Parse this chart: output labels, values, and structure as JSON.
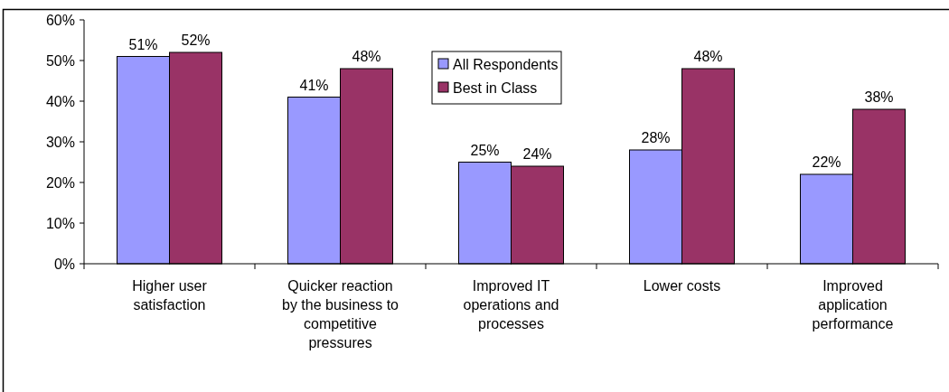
{
  "chart_data": {
    "type": "bar",
    "categories": [
      "Higher user satisfaction",
      "Quicker reaction by the business to competitive pressures",
      "Improved IT operations and processes",
      "Lower costs",
      "Improved application performance"
    ],
    "series": [
      {
        "name": "All Respondents",
        "color": "#9999ff",
        "values": [
          51,
          41,
          25,
          28,
          22
        ],
        "value_labels": [
          "51%",
          "41%",
          "25%",
          "28%",
          "22%"
        ]
      },
      {
        "name": "Best in Class",
        "color": "#993366",
        "values": [
          52,
          48,
          24,
          48,
          38
        ],
        "value_labels": [
          "52%",
          "48%",
          "24%",
          "48%",
          "38%"
        ]
      }
    ],
    "ylim": [
      0,
      60
    ],
    "yticks": [
      {
        "value": 0,
        "label": "0%"
      },
      {
        "value": 10,
        "label": "10%"
      },
      {
        "value": 20,
        "label": "20%"
      },
      {
        "value": 30,
        "label": "30%"
      },
      {
        "value": 40,
        "label": "40%"
      },
      {
        "value": 50,
        "label": "50%"
      },
      {
        "value": 60,
        "label": "60%"
      }
    ],
    "legend": "top",
    "grid": false
  }
}
